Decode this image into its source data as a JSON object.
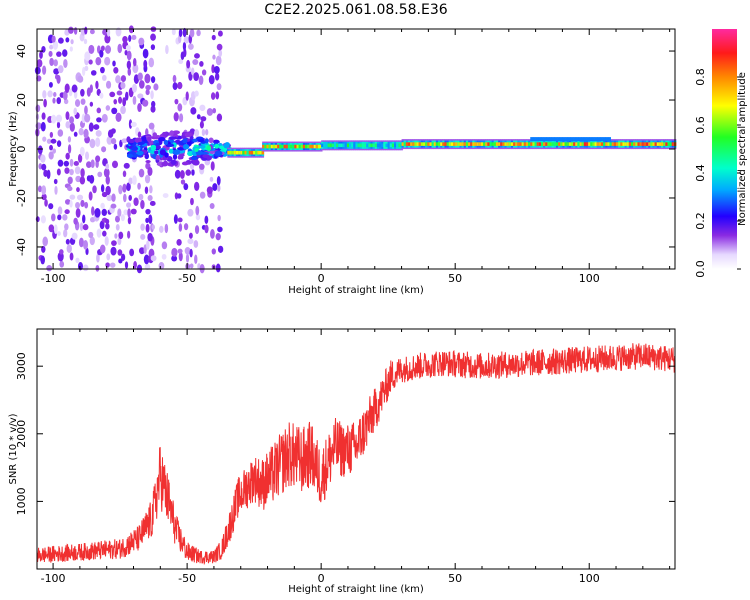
{
  "title": "C2E2.2025.061.08.58.E36",
  "chart_data": [
    {
      "type": "heatmap",
      "name": "spectrogram",
      "xlabel": "Height of straight line (km)",
      "ylabel": "Frequency (Hz)",
      "xlim": [
        -106,
        132
      ],
      "ylim": [
        -49,
        49
      ],
      "xticks": [
        -100,
        -50,
        0,
        50,
        100
      ],
      "xtick_labels": [
        "-100",
        "-50",
        "0",
        "50",
        "100"
      ],
      "yticks": [
        -40,
        -20,
        0,
        20,
        40
      ],
      "ytick_labels": [
        "-40",
        "-20",
        "0",
        "20",
        "40"
      ],
      "ridge": [
        {
          "x0": -35,
          "x1": -22,
          "f": -1.5,
          "amp": 0.85
        },
        {
          "x0": -22,
          "x1": 0,
          "f": 1.0,
          "amp": 0.9
        },
        {
          "x0": 0,
          "x1": 30,
          "f": 1.5,
          "amp": 0.55
        },
        {
          "x0": 30,
          "x1": 132,
          "f": 2.0,
          "amp": 0.9
        }
      ]
    },
    {
      "type": "colorbar",
      "name": "colorbar",
      "label": "Normalized spectral amplitude",
      "range": [
        0,
        1
      ],
      "ticks": [
        0.0,
        0.2,
        0.4,
        0.6,
        0.8
      ],
      "tick_labels": [
        "0.0",
        "0.2",
        "0.4",
        "0.6",
        "0.8"
      ]
    },
    {
      "type": "line",
      "name": "snr",
      "xlabel": "Height of straight line (km)",
      "ylabel": "SNR (10 * v/v)",
      "xlim": [
        -106,
        132
      ],
      "ylim": [
        0,
        3550
      ],
      "xticks": [
        -100,
        -50,
        0,
        50,
        100
      ],
      "xtick_labels": [
        "-100",
        "-50",
        "0",
        "50",
        "100"
      ],
      "yticks": [
        1000,
        2000,
        3000
      ],
      "ytick_labels": [
        "1000",
        "2000",
        "3000"
      ],
      "color": "#f03030",
      "series": [
        {
          "name": "SNR",
          "x": [
            -106,
            -90,
            -75,
            -68,
            -63,
            -60,
            -57,
            -54,
            -50,
            -45,
            -40,
            -37,
            -34,
            -31,
            -28,
            -25,
            -22,
            -18,
            -12,
            -7,
            -4,
            0,
            5,
            9,
            13,
            18,
            22,
            26,
            30,
            36,
            45,
            60,
            80,
            100,
            120,
            132
          ],
          "values": [
            200,
            250,
            300,
            450,
            750,
            1400,
            1000,
            550,
            250,
            180,
            180,
            300,
            650,
            1050,
            1200,
            1350,
            1250,
            1400,
            1700,
            1600,
            1700,
            1350,
            1800,
            1750,
            1800,
            2200,
            2500,
            2850,
            2950,
            3000,
            3050,
            3000,
            3050,
            3100,
            3150,
            3100
          ],
          "noise": [
            120,
            130,
            150,
            200,
            300,
            500,
            400,
            250,
            150,
            100,
            100,
            150,
            250,
            300,
            330,
            350,
            400,
            450,
            500,
            500,
            500,
            450,
            450,
            400,
            400,
            350,
            300,
            250,
            200,
            200,
            200,
            200,
            200,
            200,
            200,
            200
          ]
        }
      ]
    }
  ]
}
